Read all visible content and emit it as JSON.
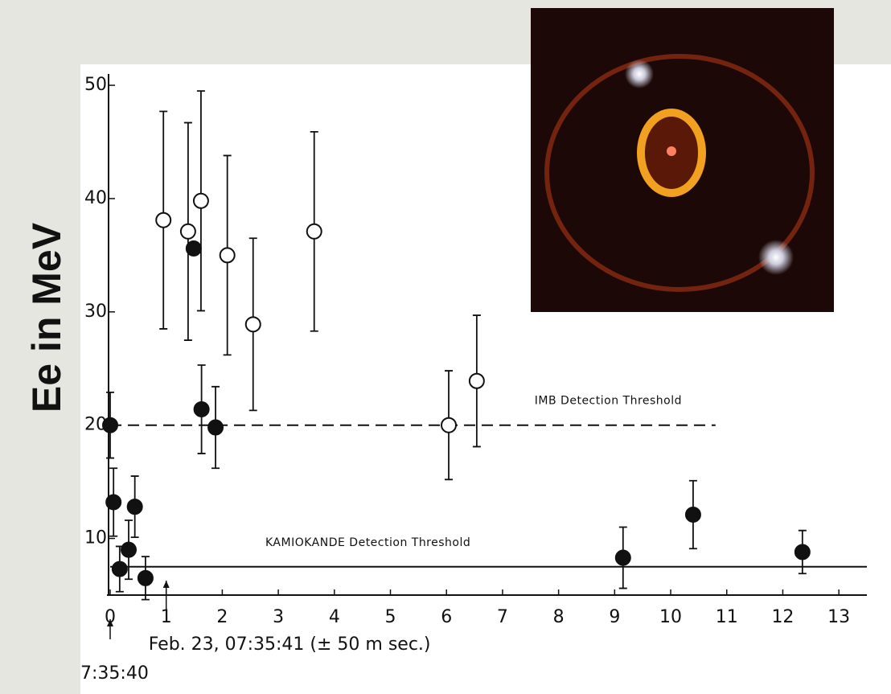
{
  "chart_data": {
    "type": "scatter",
    "y_label": "Ee in MeV",
    "xlim": [
      0,
      13.5
    ],
    "xticks": [
      0,
      1,
      2,
      3,
      4,
      5,
      6,
      7,
      8,
      9,
      10,
      11,
      12,
      13
    ],
    "ylim": [
      5,
      51
    ],
    "yticks": [
      10,
      20,
      30,
      40,
      50
    ],
    "series": [
      {
        "color": "#111111",
        "marker": "open",
        "x": [
          0.95,
          1.39,
          1.62,
          2.09,
          2.55,
          3.64,
          6.04,
          6.54
        ],
        "values": [
          38.1,
          37.1,
          39.8,
          35.0,
          28.9,
          37.1,
          20.0,
          23.9
        ],
        "errors": [
          9.6,
          9.6,
          9.7,
          8.8,
          7.6,
          8.8,
          4.8,
          5.8
        ]
      },
      {
        "color": "#111111",
        "marker": "filled",
        "x": [
          0,
          0.06,
          0.17,
          0.33,
          0.44,
          0.63,
          1.49,
          1.63,
          1.88,
          9.15,
          10.4,
          12.35
        ],
        "values": [
          20.0,
          13.2,
          7.3,
          9.0,
          12.8,
          6.5,
          35.6,
          21.4,
          19.8,
          8.3,
          12.1,
          8.8
        ],
        "errors": [
          2.9,
          3.0,
          2.0,
          2.6,
          2.7,
          1.9,
          null,
          3.9,
          3.6,
          2.7,
          3.0,
          1.9
        ]
      }
    ],
    "thresholds": [
      {
        "label": "IMB Detection Threshold",
        "value": 20,
        "dashed": true
      },
      {
        "label": "KAMIOKANDE Detection Threshold",
        "value": 7.5,
        "dashed": false
      }
    ],
    "annotations": [
      {
        "text": "Feb. 23, 07:35:41 (± 50 m sec.)",
        "x": 1
      },
      {
        "text": "7:35:40",
        "x": 0
      }
    ]
  }
}
